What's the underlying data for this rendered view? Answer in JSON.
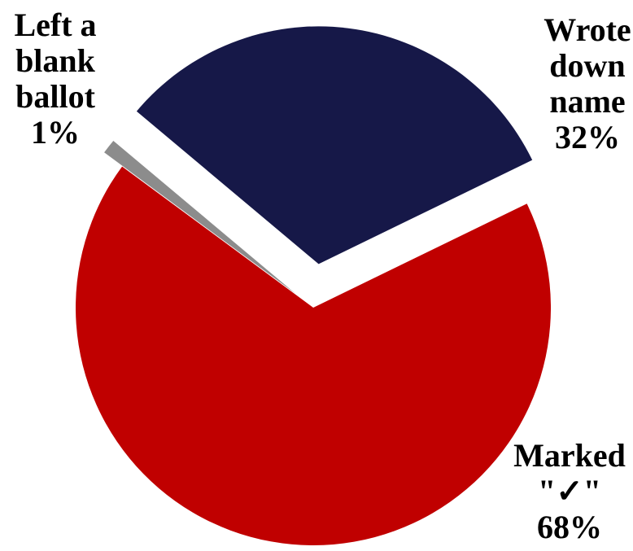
{
  "chart_data": {
    "type": "pie",
    "title": "",
    "slices": [
      {
        "label_lines": [
          "Wrote",
          "down",
          "name"
        ],
        "value": 32,
        "value_label": "32%",
        "color": "#161848",
        "exploded": true
      },
      {
        "label_lines": [
          "Marked",
          "\"✓\""
        ],
        "value": 68,
        "value_label": "68%",
        "color": "#c00000",
        "exploded": false
      },
      {
        "label_lines": [
          "Left a",
          "blank",
          "ballot"
        ],
        "value": 1,
        "value_label": "1%",
        "color": "#8c8c8c",
        "exploded": true
      }
    ],
    "legend": "none"
  }
}
